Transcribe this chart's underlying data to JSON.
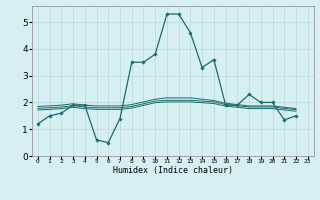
{
  "title": "",
  "xlabel": "Humidex (Indice chaleur)",
  "ylabel": "",
  "background_color": "#d6eff0",
  "grid_color": "#b8d8da",
  "line_color": "#1a6b6b",
  "xlim": [
    -0.5,
    23.5
  ],
  "ylim": [
    0,
    5.6
  ],
  "xticks": [
    0,
    1,
    2,
    3,
    4,
    5,
    6,
    7,
    8,
    9,
    10,
    11,
    12,
    13,
    14,
    15,
    16,
    17,
    18,
    19,
    20,
    21,
    22,
    23
  ],
  "yticks": [
    0,
    1,
    2,
    3,
    4,
    5
  ],
  "series": [
    [
      1.2,
      1.5,
      1.6,
      1.9,
      1.9,
      0.6,
      0.5,
      1.4,
      3.5,
      3.5,
      3.8,
      5.3,
      5.3,
      4.6,
      3.3,
      3.6,
      1.9,
      1.9,
      2.3,
      2.0,
      2.0,
      1.35,
      1.5
    ],
    [
      1.85,
      1.87,
      1.9,
      1.95,
      1.9,
      1.87,
      1.87,
      1.87,
      1.92,
      2.02,
      2.12,
      2.17,
      2.17,
      2.17,
      2.12,
      2.07,
      1.97,
      1.92,
      1.87,
      1.87,
      1.87,
      1.82,
      1.77
    ],
    [
      1.78,
      1.8,
      1.83,
      1.88,
      1.83,
      1.8,
      1.8,
      1.8,
      1.85,
      1.95,
      2.05,
      2.08,
      2.08,
      2.08,
      2.05,
      2.02,
      1.92,
      1.88,
      1.83,
      1.83,
      1.83,
      1.78,
      1.73
    ],
    [
      1.72,
      1.74,
      1.77,
      1.82,
      1.77,
      1.74,
      1.74,
      1.74,
      1.79,
      1.89,
      1.99,
      2.02,
      2.02,
      2.02,
      1.99,
      1.96,
      1.86,
      1.82,
      1.77,
      1.77,
      1.77,
      1.72,
      1.67
    ]
  ]
}
